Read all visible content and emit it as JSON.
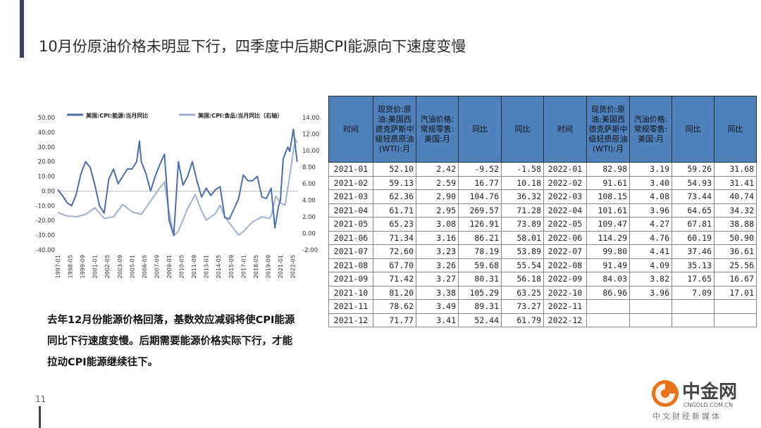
{
  "header": {
    "title": "10月份原油价格未明显下行，四季度中后期CPI能源向下速度变慢"
  },
  "note": {
    "text": "去年12月份能源价格回落，基数效应减弱将使CPI能源同比下行速度变慢。后期需要能源价格实际下行，才能拉动CPI能源继续往下。"
  },
  "page": {
    "number": "11"
  },
  "logo": {
    "cn": "中金网",
    "en": "CNGOLD.COM.CN",
    "tagline": "中文财经新媒体"
  },
  "colors": {
    "series1": "#4d6ea6",
    "series2": "#9fb2d2",
    "header_bg": "#4f81bd"
  },
  "table": {
    "headers": [
      "时间",
      "现货价:原油:美国西德克萨斯中级轻质原油(WTI):月",
      "汽油价格:常规零售:美国:月",
      "同比",
      "同比",
      "时间",
      "现货价:原油:美国西德克萨斯中级轻质原油(WTI):月",
      "汽油价格:常规零售:美国:月",
      "同比",
      "同比"
    ],
    "rows": [
      [
        "2021-01",
        "52.10",
        "2.42",
        "-9.52",
        "-1.58",
        "2022-01",
        "82.98",
        "3.19",
        "59.26",
        "31.68"
      ],
      [
        "2021-02",
        "59.13",
        "2.59",
        "16.77",
        "10.18",
        "2022-02",
        "91.61",
        "3.40",
        "54.93",
        "31.41"
      ],
      [
        "2021-03",
        "62.36",
        "2.90",
        "104.76",
        "36.32",
        "2022-03",
        "108.15",
        "4.08",
        "73.44",
        "40.74"
      ],
      [
        "2021-04",
        "61.71",
        "2.95",
        "269.57",
        "71.28",
        "2022-04",
        "101.61",
        "3.96",
        "64.65",
        "34.32"
      ],
      [
        "2021-05",
        "65.23",
        "3.08",
        "126.91",
        "73.89",
        "2022-05",
        "109.47",
        "4.27",
        "67.81",
        "38.88"
      ],
      [
        "2021-06",
        "71.34",
        "3.16",
        "86.21",
        "58.01",
        "2022-06",
        "114.29",
        "4.76",
        "60.19",
        "50.90"
      ],
      [
        "2021-07",
        "72.60",
        "3.23",
        "78.19",
        "53.89",
        "2022-07",
        "99.80",
        "4.41",
        "37.46",
        "36.61"
      ],
      [
        "2021-08",
        "67.70",
        "3.26",
        "59.68",
        "55.54",
        "2022-08",
        "91.49",
        "4.09",
        "35.13",
        "25.56"
      ],
      [
        "2021-09",
        "71.42",
        "3.27",
        "80.31",
        "56.18",
        "2022-09",
        "84.03",
        "3.82",
        "17.65",
        "16.67"
      ],
      [
        "2021-10",
        "81.20",
        "3.38",
        "105.29",
        "63.25",
        "2022-10",
        "86.96",
        "3.96",
        "7.09",
        "17.01"
      ],
      [
        "2021-11",
        "78.62",
        "3.49",
        "89.31",
        "73.27",
        "2022-11",
        "",
        "",
        "",
        ""
      ],
      [
        "2021-12",
        "71.77",
        "3.41",
        "52.44",
        "61.79",
        "2022-12",
        "",
        "",
        "",
        ""
      ]
    ]
  },
  "chart_data": {
    "type": "line",
    "legend": [
      "美国:CPI:能源:当月同比",
      "美国:CPI:食品:当月同比（右轴）"
    ],
    "x_ticks": [
      "1997-01",
      "1998-05",
      "1999-09",
      "2001-01",
      "2002-05",
      "2003-09",
      "2005-01",
      "2006-05",
      "2007-09",
      "2009-01",
      "2010-05",
      "2011-09",
      "2013-01",
      "2014-05",
      "2015-09",
      "2017-01",
      "2018-05",
      "2019-09",
      "2021-01",
      "2022-05"
    ],
    "y_left": {
      "range": [
        -40,
        50
      ],
      "ticks": [
        "50.00",
        "40.00",
        "30.00",
        "20.00",
        "10.00",
        "0.00",
        "-10.00",
        "-20.00",
        "-30.00",
        "-40.00"
      ]
    },
    "y_right": {
      "range": [
        -2,
        14
      ],
      "ticks": [
        "14.00",
        "12.00",
        "10.00",
        "8.00",
        "6.00",
        "4.00",
        "2.00",
        "0.00",
        "-2.00"
      ]
    },
    "series": [
      {
        "name": "美国:CPI:能源:当月同比",
        "axis": "left",
        "x": [
          1997,
          1997.5,
          1998,
          1998.5,
          1999,
          1999.5,
          2000,
          2000.5,
          2001,
          2001.5,
          2002,
          2002.5,
          2003,
          2003.5,
          2004,
          2004.5,
          2005,
          2005.5,
          2005.8,
          2006,
          2006.5,
          2007,
          2007.5,
          2008,
          2008.5,
          2009,
          2009.5,
          2010,
          2010.5,
          2011,
          2011.5,
          2012,
          2012.5,
          2013,
          2013.5,
          2014,
          2014.5,
          2015,
          2015.5,
          2016,
          2016.5,
          2017,
          2017.5,
          2018,
          2018.5,
          2019,
          2019.5,
          2020,
          2020.4,
          2020.8,
          2021,
          2021.3,
          2021.8,
          2022,
          2022.4,
          2022.8
        ],
        "values": [
          1,
          -3,
          -8,
          -10,
          -2,
          12,
          20,
          16,
          4,
          -10,
          -15,
          8,
          15,
          5,
          10,
          15,
          15,
          20,
          34,
          20,
          12,
          0,
          10,
          18,
          25,
          -20,
          -30,
          20,
          4,
          10,
          20,
          7,
          -4,
          2,
          -3,
          1,
          3,
          -18,
          -19,
          -12,
          -5,
          11,
          7,
          7,
          10,
          -4,
          -5,
          2,
          -25,
          -10,
          -6,
          22,
          30,
          27,
          42,
          20
        ]
      },
      {
        "name": "美国:CPI:食品:当月同比（右轴）",
        "axis": "right",
        "x": [
          1997,
          1998,
          1999,
          2000,
          2001,
          2002,
          2003,
          2004,
          2005,
          2006,
          2007,
          2008,
          2008.5,
          2009,
          2009.5,
          2010,
          2011,
          2011.8,
          2012.5,
          2013,
          2014,
          2014.5,
          2015,
          2016,
          2016.5,
          2017,
          2018,
          2019,
          2019.8,
          2020,
          2020.5,
          2021,
          2021.5,
          2022,
          2022.6,
          2022.8
        ],
        "values": [
          2.5,
          2.1,
          2.0,
          2.3,
          3.1,
          1.8,
          2.0,
          3.5,
          2.6,
          2.3,
          3.9,
          5.5,
          6.2,
          2.5,
          -0.3,
          0.3,
          3.0,
          4.7,
          2.7,
          1.6,
          2.4,
          3.4,
          2.0,
          0.5,
          -0.2,
          0.2,
          1.4,
          2.0,
          1.8,
          2.1,
          4.5,
          3.7,
          3.4,
          7.0,
          11.4,
          10.9
        ]
      }
    ]
  }
}
